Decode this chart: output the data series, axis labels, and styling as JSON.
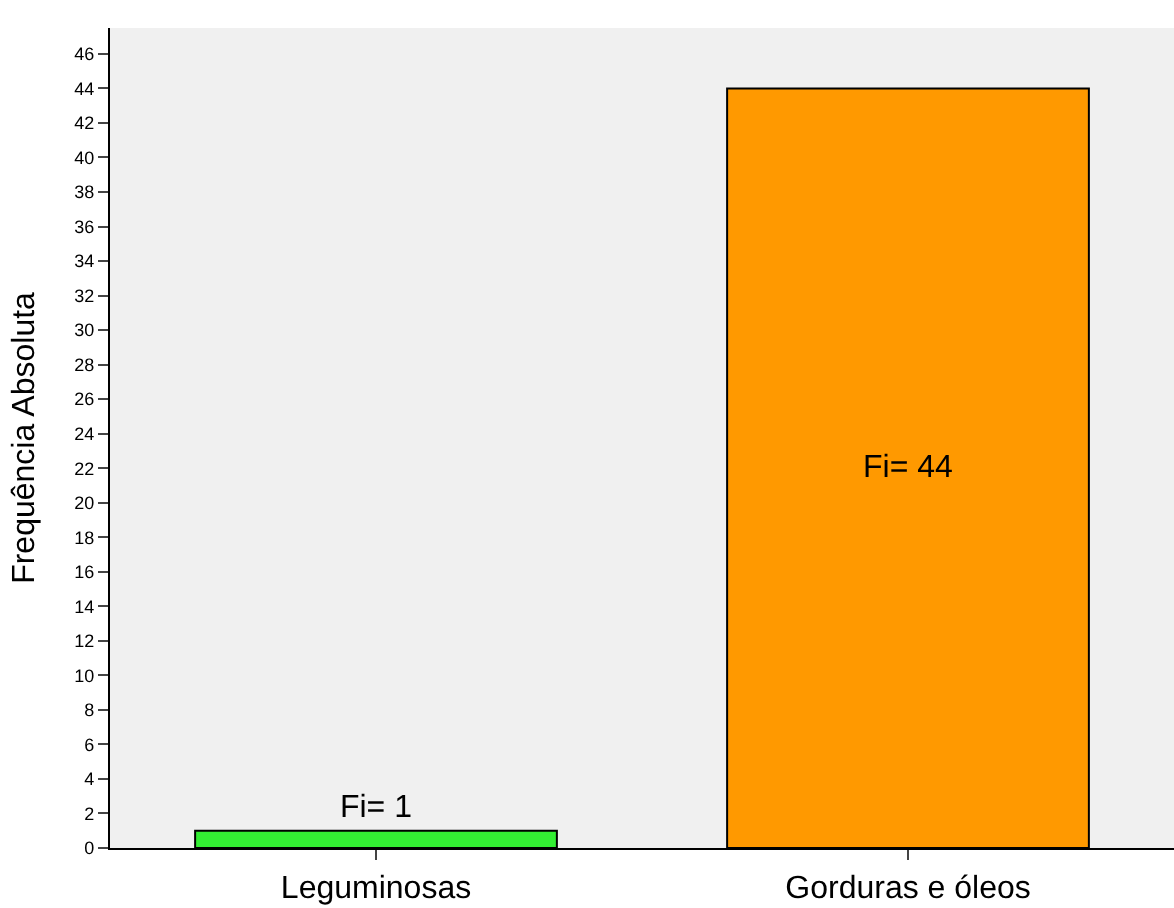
{
  "chart_data": {
    "type": "bar",
    "ylabel": "Frequência Absoluta",
    "categories": [
      "Leguminosas",
      "Gorduras e óleos"
    ],
    "values": [
      1,
      44
    ],
    "colors": [
      "#33ee33",
      "#ff9900"
    ],
    "value_labels": [
      "Fi= 1",
      "Fi= 44"
    ],
    "ylim": [
      0,
      47.5
    ],
    "yticks": [
      0,
      2,
      4,
      6,
      8,
      10,
      12,
      14,
      16,
      18,
      20,
      22,
      24,
      26,
      28,
      30,
      32,
      34,
      36,
      38,
      40,
      42,
      44,
      46
    ],
    "grid": false,
    "legend": false
  }
}
